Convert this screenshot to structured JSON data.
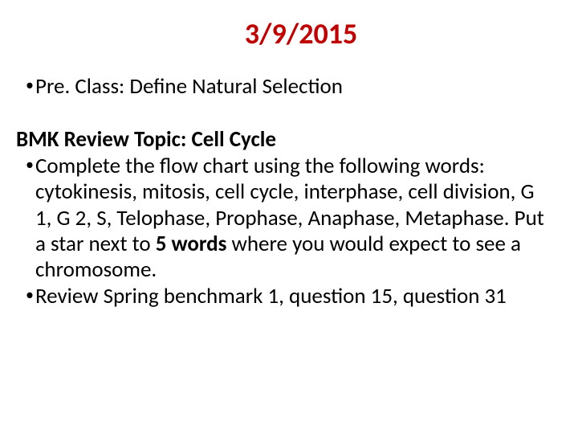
{
  "title": {
    "text": "3/9/2015",
    "color": "#c00000",
    "fontsize": 36
  },
  "section1": {
    "bullet1": {
      "text": "Pre. Class: Define Natural Selection",
      "fontsize": 27
    }
  },
  "section2": {
    "heading": {
      "text": "BMK Review Topic: Cell Cycle",
      "fontsize": 27
    },
    "bullet1": {
      "pre": "Complete the flow chart using the following words: cytokinesis, mitosis, cell cycle, interphase, cell division, G 1, G 2, S, Telophase, Prophase, Anaphase, Metaphase.  Put a star next to ",
      "bold": "5 words",
      "post": " where you would expect to see a chromosome.",
      "fontsize": 27
    },
    "bullet2": {
      "text": "Review Spring benchmark 1, question 15, question 31",
      "fontsize": 27
    }
  },
  "bullet_glyph": "•",
  "bullet_fontsize": 20
}
